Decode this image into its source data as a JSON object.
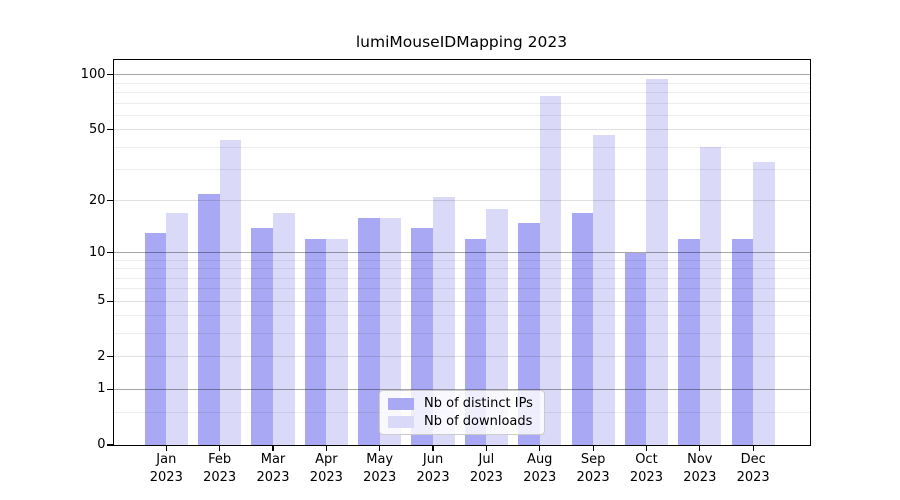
{
  "title": "lumiMouseIDMapping 2023",
  "colors": {
    "distinct_ips_bar": "#a8a8f4",
    "downloads_bar": "#dadaf8",
    "background": "#ffffff"
  },
  "chart_data": {
    "type": "bar",
    "title": "lumiMouseIDMapping 2023",
    "categories": [
      "Jan",
      "Feb",
      "Mar",
      "Apr",
      "May",
      "Jun",
      "Jul",
      "Aug",
      "Sep",
      "Oct",
      "Nov",
      "Dec"
    ],
    "category_year": "2023",
    "series": [
      {
        "name": "Nb of distinct IPs",
        "color": "#a8a8f4",
        "values": [
          13,
          22,
          14,
          12,
          16,
          14,
          12,
          15,
          17,
          10,
          12,
          12
        ]
      },
      {
        "name": "Nb of downloads",
        "color": "#dadaf8",
        "values": [
          17,
          44,
          17,
          12,
          16,
          21,
          18,
          77,
          47,
          95,
          40,
          33
        ]
      }
    ],
    "xlabel": "",
    "ylabel": "",
    "yscale": "symlog",
    "ylim": [
      0,
      120
    ],
    "yticks": [
      0,
      1,
      2,
      5,
      10,
      20,
      50,
      100
    ],
    "minor_yticks": [
      0.5,
      3,
      4,
      6,
      7,
      8,
      9,
      30,
      40,
      60,
      70,
      80,
      90
    ],
    "grid": true,
    "legend_position": "lower center"
  }
}
